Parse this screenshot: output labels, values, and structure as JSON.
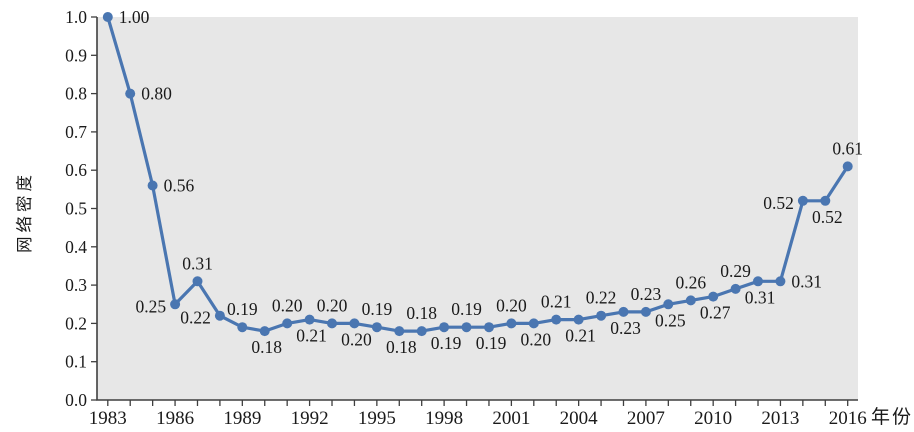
{
  "chart_data": {
    "type": "line",
    "xlabel": "年份",
    "ylabel": "网络密度",
    "x": [
      1983,
      1984,
      1985,
      1986,
      1987,
      1988,
      1989,
      1990,
      1991,
      1992,
      1993,
      1994,
      1995,
      1996,
      1997,
      1998,
      1999,
      2000,
      2001,
      2002,
      2003,
      2004,
      2005,
      2006,
      2007,
      2008,
      2009,
      2010,
      2011,
      2012,
      2013,
      2014,
      2015,
      2016
    ],
    "values": [
      1.0,
      0.8,
      0.56,
      0.25,
      0.31,
      0.22,
      0.19,
      0.18,
      0.2,
      0.21,
      0.2,
      0.2,
      0.19,
      0.18,
      0.18,
      0.19,
      0.19,
      0.19,
      0.2,
      0.2,
      0.21,
      0.21,
      0.22,
      0.23,
      0.23,
      0.25,
      0.26,
      0.27,
      0.29,
      0.31,
      0.31,
      0.52,
      0.52,
      0.61
    ],
    "point_labels": [
      "1.00",
      "0.80",
      "0.56",
      "0.25",
      "0.31",
      "0.22",
      "0.19",
      "0.18",
      "0.20",
      "0.21",
      "0.20",
      "0.20",
      "0.19",
      "0.18",
      "0.18",
      "0.19",
      "0.19",
      "0.19",
      "0.20",
      "0.20",
      "0.21",
      "0.21",
      "0.22",
      "0.23",
      "0.23",
      "0.25",
      "0.26",
      "0.27",
      "0.29",
      "0.31",
      "0.31",
      "0.52",
      "0.52",
      "0.61"
    ],
    "label_positions": [
      "right",
      "right",
      "right",
      "left",
      "above",
      "left",
      "above",
      "below",
      "above",
      "below",
      "above",
      "below",
      "above",
      "below",
      "above",
      "below",
      "above",
      "below",
      "above",
      "below",
      "above",
      "below",
      "above",
      "below",
      "above",
      "below",
      "above",
      "below",
      "above",
      "below",
      "right",
      "left",
      "below",
      "above"
    ],
    "x_tick_labels": [
      "1983",
      "1986",
      "1989",
      "1992",
      "1995",
      "1998",
      "2001",
      "2004",
      "2007",
      "2010",
      "2013",
      "2016"
    ],
    "y_tick_labels": [
      "0.0",
      "0.1",
      "0.2",
      "0.3",
      "0.4",
      "0.5",
      "0.6",
      "0.7",
      "0.8",
      "0.9",
      "1.0"
    ],
    "ylim": [
      0,
      1
    ],
    "grid": false,
    "legend": "none",
    "colors": {
      "line": "#4a76b1",
      "marker": "#4a76b1",
      "plot_background": "#e7e7e7",
      "axis": "#3f3f3f",
      "text": "#1a1a1a"
    }
  }
}
